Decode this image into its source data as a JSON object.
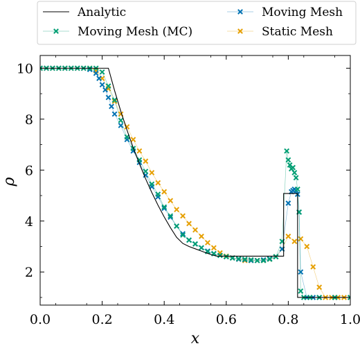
{
  "chart_data": {
    "type": "line",
    "xlabel": "x",
    "ylabel": "ρ",
    "xlim": [
      0,
      1
    ],
    "ylim": [
      0.7,
      10.5
    ],
    "xticks": [
      0.0,
      0.2,
      0.4,
      0.6,
      0.8,
      1.0
    ],
    "xtick_labels": [
      "0.0",
      "0.2",
      "0.4",
      "0.6",
      "0.8",
      "1.0"
    ],
    "yticks": [
      2,
      4,
      6,
      8,
      10
    ],
    "ytick_labels": [
      "2",
      "4",
      "6",
      "8",
      "10"
    ],
    "legend_position": "top-outside",
    "grid": false,
    "series": [
      {
        "name": "Analytic",
        "style": "line",
        "color": "#000000",
        "x": [
          0.0,
          0.22,
          0.24,
          0.26,
          0.28,
          0.3,
          0.32,
          0.34,
          0.36,
          0.38,
          0.4,
          0.42,
          0.44,
          0.46,
          0.48,
          0.5,
          0.52,
          0.54,
          0.56,
          0.57,
          0.785,
          0.785,
          0.83,
          0.83,
          1.0
        ],
        "y": [
          10.0,
          10.0,
          9.12,
          8.31,
          7.57,
          6.88,
          6.25,
          5.66,
          5.12,
          4.62,
          4.16,
          3.74,
          3.36,
          3.12,
          3.0,
          2.91,
          2.82,
          2.73,
          2.65,
          2.62,
          2.62,
          5.08,
          5.08,
          1.0,
          1.0
        ]
      },
      {
        "name": "Moving Mesh (MC)",
        "style": "marker-line",
        "color": "#009e73",
        "x": [
          0.0,
          0.02,
          0.04,
          0.06,
          0.08,
          0.1,
          0.12,
          0.14,
          0.16,
          0.18,
          0.2,
          0.22,
          0.24,
          0.26,
          0.28,
          0.3,
          0.32,
          0.34,
          0.36,
          0.38,
          0.4,
          0.42,
          0.44,
          0.46,
          0.48,
          0.5,
          0.52,
          0.54,
          0.56,
          0.58,
          0.6,
          0.62,
          0.64,
          0.66,
          0.68,
          0.7,
          0.72,
          0.74,
          0.76,
          0.78,
          0.795,
          0.8,
          0.805,
          0.81,
          0.815,
          0.82,
          0.825,
          0.83,
          0.835,
          0.84,
          0.85,
          0.87,
          0.9,
          0.95,
          1.0
        ],
        "y": [
          10.0,
          10.0,
          10.0,
          10.0,
          10.0,
          10.0,
          10.0,
          10.0,
          10.0,
          10.0,
          9.85,
          9.3,
          8.75,
          7.95,
          7.3,
          6.85,
          6.4,
          5.95,
          5.45,
          5.05,
          4.55,
          4.2,
          3.8,
          3.45,
          3.25,
          3.1,
          2.95,
          2.8,
          2.72,
          2.65,
          2.6,
          2.55,
          2.52,
          2.5,
          2.48,
          2.45,
          2.45,
          2.5,
          2.6,
          3.2,
          6.75,
          6.4,
          6.2,
          6.05,
          6.1,
          5.9,
          5.7,
          5.25,
          4.35,
          1.25,
          1.0,
          1.0,
          1.0,
          1.0,
          1.0
        ]
      },
      {
        "name": "Moving Mesh",
        "style": "marker-line",
        "color": "#0072b2",
        "x": [
          0.0,
          0.02,
          0.04,
          0.06,
          0.08,
          0.1,
          0.12,
          0.14,
          0.16,
          0.18,
          0.19,
          0.2,
          0.21,
          0.22,
          0.23,
          0.24,
          0.26,
          0.28,
          0.3,
          0.32,
          0.34,
          0.36,
          0.38,
          0.4,
          0.42,
          0.44,
          0.46,
          0.48,
          0.5,
          0.52,
          0.54,
          0.56,
          0.58,
          0.6,
          0.62,
          0.64,
          0.66,
          0.68,
          0.7,
          0.72,
          0.74,
          0.76,
          0.78,
          0.8,
          0.81,
          0.815,
          0.82,
          0.825,
          0.83,
          0.835,
          0.84,
          0.86,
          0.88,
          0.9,
          0.95,
          1.0
        ],
        "y": [
          10.0,
          10.0,
          10.0,
          10.0,
          10.0,
          10.0,
          10.0,
          10.0,
          9.95,
          9.8,
          9.6,
          9.35,
          9.15,
          8.85,
          8.5,
          8.2,
          7.75,
          7.2,
          6.75,
          6.3,
          5.8,
          5.35,
          4.95,
          4.5,
          4.15,
          3.8,
          3.5,
          3.25,
          3.1,
          2.95,
          2.82,
          2.72,
          2.65,
          2.6,
          2.55,
          2.5,
          2.48,
          2.45,
          2.45,
          2.48,
          2.52,
          2.6,
          2.9,
          4.7,
          5.15,
          5.2,
          5.25,
          5.2,
          5.05,
          4.35,
          2.0,
          1.0,
          1.0,
          1.0,
          1.0,
          1.0
        ]
      },
      {
        "name": "Static Mesh",
        "style": "marker-line",
        "color": "#e69f00",
        "x": [
          0.0,
          0.02,
          0.04,
          0.06,
          0.08,
          0.1,
          0.12,
          0.14,
          0.16,
          0.18,
          0.2,
          0.22,
          0.24,
          0.26,
          0.28,
          0.3,
          0.32,
          0.34,
          0.36,
          0.38,
          0.4,
          0.42,
          0.44,
          0.46,
          0.48,
          0.5,
          0.52,
          0.54,
          0.56,
          0.58,
          0.6,
          0.62,
          0.64,
          0.66,
          0.68,
          0.7,
          0.72,
          0.74,
          0.76,
          0.78,
          0.8,
          0.82,
          0.84,
          0.86,
          0.88,
          0.9,
          0.92,
          0.94,
          0.96,
          0.98,
          1.0
        ],
        "y": [
          10.0,
          10.0,
          10.0,
          10.0,
          10.0,
          10.0,
          10.0,
          10.0,
          10.0,
          9.9,
          9.6,
          9.2,
          8.7,
          8.2,
          7.7,
          7.2,
          6.75,
          6.35,
          5.9,
          5.5,
          5.15,
          4.8,
          4.45,
          4.2,
          3.9,
          3.65,
          3.4,
          3.15,
          2.95,
          2.75,
          2.62,
          2.55,
          2.5,
          2.45,
          2.45,
          2.45,
          2.45,
          2.5,
          2.6,
          2.9,
          3.4,
          3.2,
          3.3,
          3.0,
          2.2,
          1.4,
          1.0,
          1.0,
          1.0,
          1.0,
          1.0
        ]
      }
    ]
  }
}
